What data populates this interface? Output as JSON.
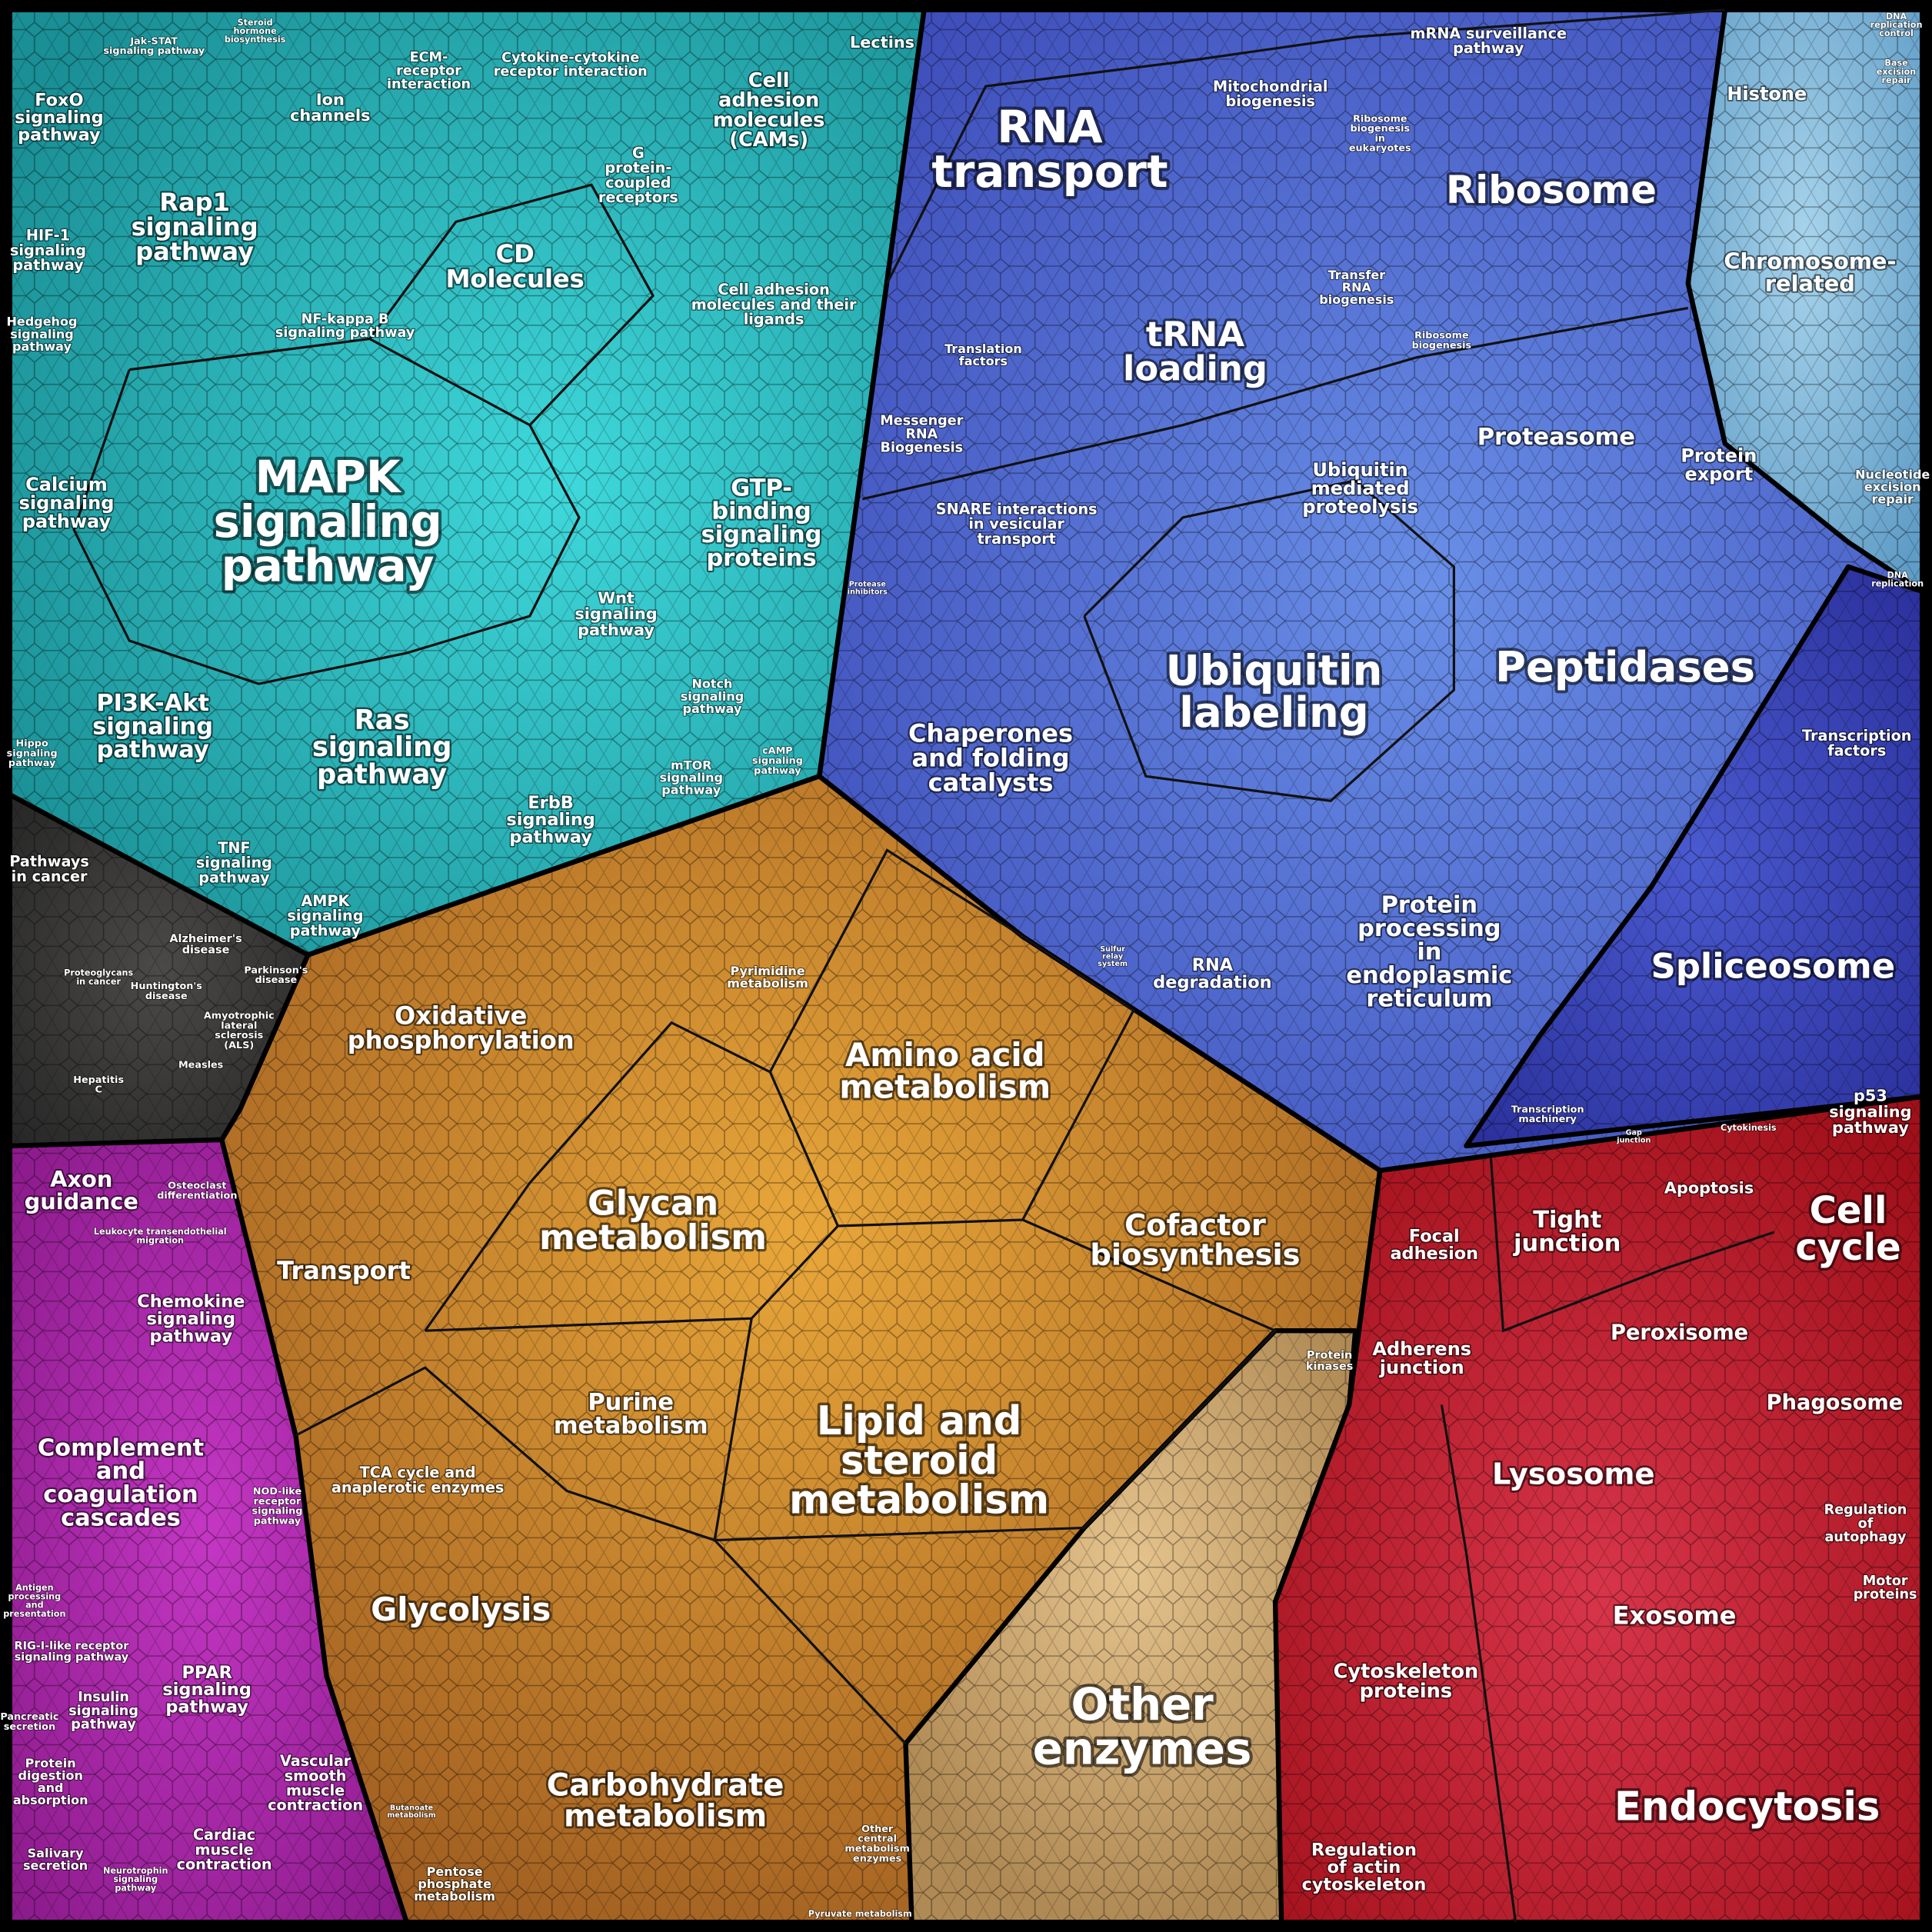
{
  "labels": [
    [
      "FoxO",
      "signaling",
      "pathway"
    ],
    [
      "Jak-STAT",
      "signaling pathway"
    ],
    [
      "Steroid",
      "hormone",
      "biosynthesis"
    ],
    [
      "Ion",
      "channels"
    ],
    [
      "ECM-",
      "receptor",
      "interaction"
    ],
    [
      "Cytokine-cytokine",
      "receptor interaction"
    ],
    [
      "Lectins"
    ],
    [
      "Cell",
      "adhesion",
      "molecules",
      "(CAMs)"
    ],
    [
      "Rap1",
      "signaling",
      "pathway"
    ],
    [
      "G",
      "protein-",
      "coupled",
      "receptors"
    ],
    [
      "HIF-1",
      "signaling",
      "pathway"
    ],
    [
      "CD",
      "Molecules"
    ],
    [
      "Hedgehog",
      "signaling",
      "pathway"
    ],
    [
      "NF-kappa B",
      "signaling pathway"
    ],
    [
      "Cell adhesion",
      "molecules and their",
      "ligands"
    ],
    [
      "MAPK",
      "signaling",
      "pathway"
    ],
    [
      "Calcium",
      "signaling",
      "pathway"
    ],
    [
      "GTP-",
      "binding",
      "signaling",
      "proteins"
    ],
    [
      "Wnt",
      "signaling",
      "pathway"
    ],
    [
      "PI3K-Akt",
      "signaling",
      "pathway"
    ],
    [
      "Ras",
      "signaling",
      "pathway"
    ],
    [
      "Notch",
      "signaling",
      "pathway"
    ],
    [
      "Hippo",
      "signaling",
      "pathway"
    ],
    [
      "mTOR",
      "signaling",
      "pathway"
    ],
    [
      "cAMP",
      "signaling",
      "pathway"
    ],
    [
      "ErbB",
      "signaling",
      "pathway"
    ],
    [
      "TNF",
      "signaling",
      "pathway"
    ],
    [
      "AMPK",
      "signaling",
      "pathway"
    ],
    [
      "Pathways",
      "in cancer"
    ],
    [
      "Alzheimer's",
      "disease"
    ],
    [
      "Parkinson's",
      "disease"
    ],
    [
      "Proteoglycans",
      "in cancer"
    ],
    [
      "Huntington's",
      "disease"
    ],
    [
      "Amyotrophic",
      "lateral",
      "sclerosis",
      "(ALS)"
    ],
    [
      "Measles"
    ],
    [
      "Hepatitis",
      "C"
    ],
    [
      "Axon",
      "guidance"
    ],
    [
      "Osteoclast",
      "differentiation"
    ],
    [
      "Leukocyte transendothelial",
      "migration"
    ],
    [
      "Chemokine",
      "signaling",
      "pathway"
    ],
    [
      "Complement",
      "and",
      "coagulation",
      "cascades"
    ],
    [
      "NOD-like",
      "receptor",
      "signaling",
      "pathway"
    ],
    [
      "Antigen",
      "processing",
      "and",
      "presentation"
    ],
    [
      "RIG-I-like receptor",
      "signaling pathway"
    ],
    [
      "PPAR",
      "signaling",
      "pathway"
    ],
    [
      "Insulin",
      "signaling",
      "pathway"
    ],
    [
      "Pancreatic",
      "secretion"
    ],
    [
      "Vascular",
      "smooth",
      "muscle",
      "contraction"
    ],
    [
      "Protein",
      "digestion",
      "and",
      "absorption"
    ],
    [
      "Cardiac",
      "muscle",
      "contraction"
    ],
    [
      "Salivary",
      "secretion"
    ],
    [
      "Neurotrophin",
      "signaling",
      "pathway"
    ],
    [
      "Oxidative",
      "phosphorylation"
    ],
    [
      "Pyrimidine",
      "metabolism"
    ],
    [
      "Amino acid",
      "metabolism"
    ],
    [
      "Glycan",
      "metabolism"
    ],
    [
      "Cofactor",
      "biosynthesis"
    ],
    [
      "Transport"
    ],
    [
      "Purine",
      "metabolism"
    ],
    [
      "Lipid and",
      "steroid",
      "metabolism"
    ],
    [
      "Protein",
      "kinases"
    ],
    [
      "TCA cycle and",
      "anaplerotic enzymes"
    ],
    [
      "Glycolysis"
    ],
    [
      "Other",
      "enzymes"
    ],
    [
      "Carbohydrate",
      "metabolism"
    ],
    [
      "Other",
      "central",
      "metabolism",
      "enzymes"
    ],
    [
      "Butanoate",
      "metabolism"
    ],
    [
      "Pentose",
      "phosphate",
      "metabolism"
    ],
    [
      "Pyruvate metabolism"
    ],
    [
      "mRNA surveillance",
      "pathway"
    ],
    [
      "Mitochondrial",
      "biogenesis"
    ],
    [
      "RNA",
      "transport"
    ],
    [
      "Ribosome",
      "biogenesis",
      "in",
      "eukaryotes"
    ],
    [
      "Ribosome"
    ],
    [
      "Transfer",
      "RNA",
      "biogenesis"
    ],
    [
      "tRNA",
      "loading"
    ],
    [
      "Translation",
      "factors"
    ],
    [
      "Ribosome",
      "biogenesis"
    ],
    [
      "Messenger",
      "RNA",
      "Biogenesis"
    ],
    [
      "Proteasome"
    ],
    [
      "Protein",
      "export"
    ],
    [
      "Ubiquitin",
      "mediated",
      "proteolysis"
    ],
    [
      "SNARE interactions",
      "in vesicular",
      "transport"
    ],
    [
      "Protease",
      "inhibitors"
    ],
    [
      "Ubiquitin",
      "labeling"
    ],
    [
      "Peptidases"
    ],
    [
      "Chaperones",
      "and folding",
      "catalysts"
    ],
    [
      "Sulfur",
      "relay",
      "system"
    ],
    [
      "RNA",
      "degradation"
    ],
    [
      "Protein",
      "processing",
      "in",
      "endoplasmic",
      "reticulum"
    ],
    [
      "Transcription",
      "machinery"
    ],
    [
      "Histone"
    ],
    [
      "Chromosome-",
      "related"
    ],
    [
      "DNA",
      "replication",
      "control"
    ],
    [
      "Base",
      "excision",
      "repair"
    ],
    [
      "Nucleotide",
      "excision",
      "repair"
    ],
    [
      "DNA",
      "replication"
    ],
    [
      "Transcription",
      "factors"
    ],
    [
      "Spliceosome"
    ],
    [
      "p53",
      "signaling",
      "pathway"
    ],
    [
      "Cytokinesis"
    ],
    [
      "Gap",
      "junction"
    ],
    [
      "Apoptosis"
    ],
    [
      "Cell",
      "cycle"
    ],
    [
      "Focal",
      "adhesion"
    ],
    [
      "Tight",
      "junction"
    ],
    [
      "Adherens",
      "junction"
    ],
    [
      "Peroxisome"
    ],
    [
      "Phagosome"
    ],
    [
      "Lysosome"
    ],
    [
      "Regulation",
      "of",
      "autophagy"
    ],
    [
      "Motor",
      "proteins"
    ],
    [
      "Exosome"
    ],
    [
      "Cytoskeleton",
      "proteins"
    ],
    [
      "Endocytosis"
    ],
    [
      "Regulation",
      "of actin",
      "cytoskeleton"
    ]
  ]
}
